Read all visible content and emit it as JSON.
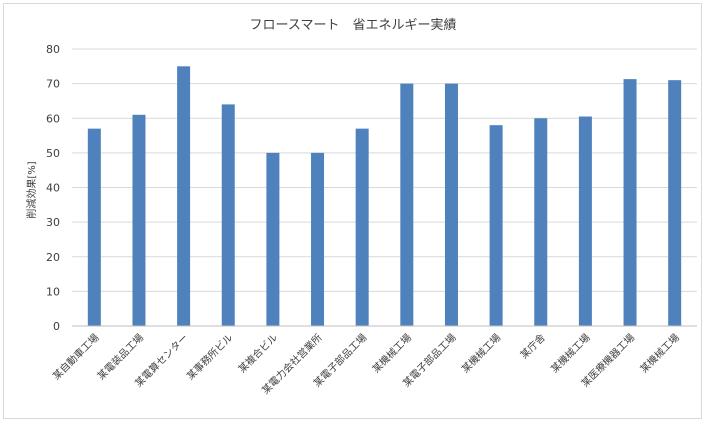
{
  "chart_data": {
    "type": "bar",
    "title": "フロースマート　省エネルギー実績",
    "ylabel": "削減効果[%]",
    "xlabel": "",
    "ylim": [
      0,
      80
    ],
    "yticks": [
      0,
      10,
      20,
      30,
      40,
      50,
      60,
      70,
      80
    ],
    "grid": true,
    "legend": "none",
    "bar_color": "#4F81BD",
    "categories": [
      "某自動車工場",
      "某電装品工場",
      "某電算センター",
      "某事務所ビル",
      "某複合ビル",
      "某電力会社営業所",
      "某電子部品工場",
      "某機械工場",
      "某電子部品工場",
      "某機械工場",
      "某庁舎",
      "某機械工場",
      "某医療機器工場",
      "某機械工場"
    ],
    "values": [
      57,
      61,
      75,
      64,
      50,
      50,
      57,
      70,
      70,
      58,
      60,
      60.5,
      71.3,
      71
    ]
  }
}
